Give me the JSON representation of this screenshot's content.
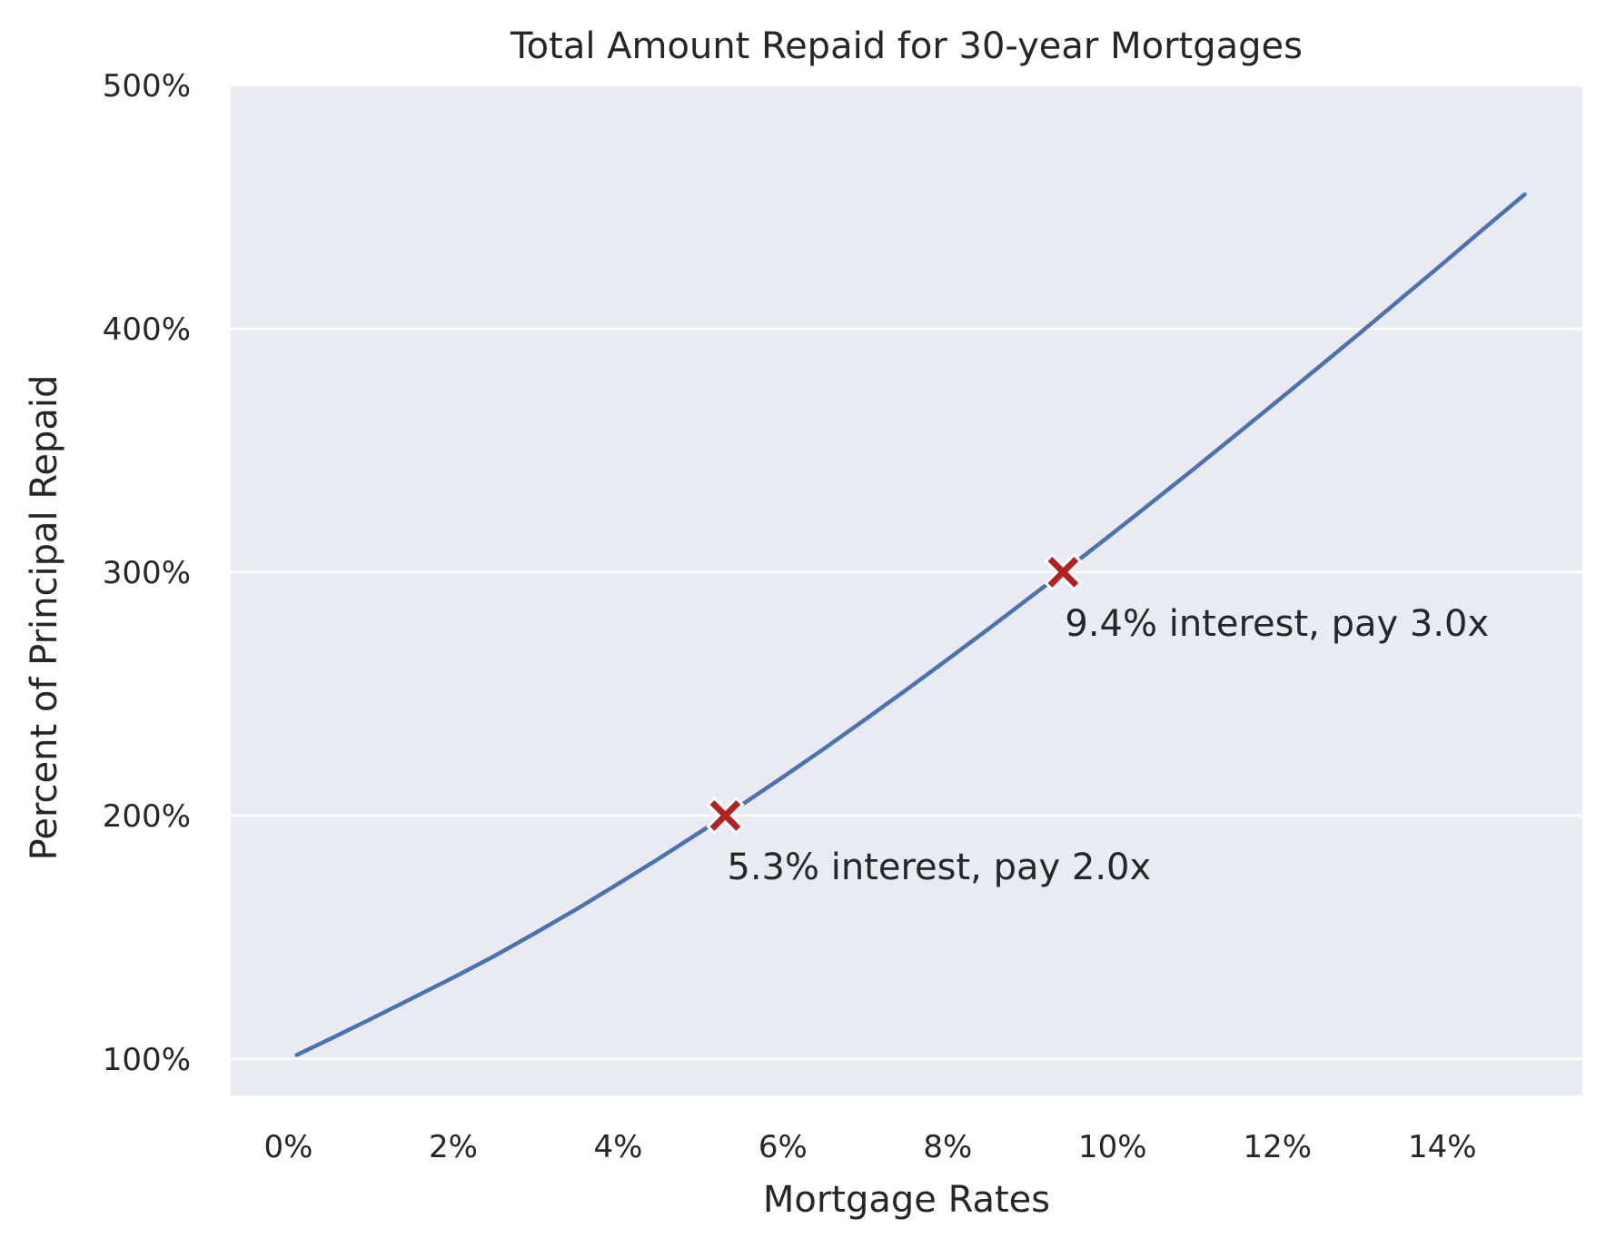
{
  "chart_data": {
    "type": "line",
    "title": "Total Amount Repaid for 30-year Mortgages",
    "xlabel": "Mortgage Rates",
    "ylabel": "Percent of Principal Repaid",
    "xlim": [
      -0.7,
      15.7
    ],
    "ylim": [
      85,
      500
    ],
    "x_ticks": [
      0,
      2,
      4,
      6,
      8,
      10,
      12,
      14
    ],
    "x_tick_labels": [
      "0%",
      "2%",
      "4%",
      "6%",
      "8%",
      "10%",
      "12%",
      "14%"
    ],
    "y_ticks": [
      100,
      200,
      300,
      400,
      500
    ],
    "y_tick_labels": [
      "100%",
      "200%",
      "300%",
      "400%",
      "500%"
    ],
    "grid": true,
    "series": [
      {
        "color": "#4c72b0",
        "x": [
          0.1,
          0.5,
          1,
          1.5,
          2,
          2.5,
          3,
          3.5,
          4,
          4.5,
          5,
          5.3,
          5.5,
          6,
          6.5,
          7,
          7.5,
          8,
          8.5,
          9,
          9.4,
          9.5,
          10,
          10.5,
          11,
          11.5,
          12,
          12.5,
          13,
          13.5,
          14,
          14.5,
          15
        ],
        "y": [
          101.6,
          108.1,
          116.4,
          124.9,
          133.4,
          142.3,
          151.8,
          161.6,
          171.9,
          182.4,
          193.3,
          200.0,
          204.4,
          215.8,
          227.5,
          239.5,
          251.7,
          264.2,
          276.8,
          289.7,
          300.0,
          302.7,
          315.9,
          329.3,
          342.8,
          356.5,
          370.3,
          384.2,
          398.2,
          412.4,
          426.6,
          441.0,
          455.2
        ]
      }
    ],
    "markers": [
      {
        "x": 5.3,
        "y": 200,
        "color": "#b22222",
        "symbol": "x-filled"
      },
      {
        "x": 9.4,
        "y": 300,
        "color": "#b22222",
        "symbol": "x-filled"
      }
    ],
    "annotations": [
      {
        "x": 5.3,
        "y": 200,
        "text": "5.3% interest, pay 2.0x"
      },
      {
        "x": 9.4,
        "y": 300,
        "text": "9.4% interest, pay 3.0x"
      }
    ],
    "colors": {
      "plot_background": "#eaeaf2",
      "grid": "#ffffff",
      "line": "#4c72b0",
      "marker": "#b22222",
      "text": "#262626"
    }
  }
}
